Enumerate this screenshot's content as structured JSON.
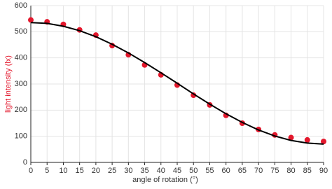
{
  "chart_data": {
    "type": "scatter",
    "x_label": "angle of rotation (°)",
    "y_label": "light intensity (lx)",
    "x": [
      0,
      5,
      10,
      15,
      20,
      25,
      30,
      35,
      40,
      45,
      50,
      55,
      60,
      65,
      70,
      75,
      80,
      85,
      90
    ],
    "series": [
      {
        "type": "scatter",
        "color": "#e3172c",
        "values": [
          545,
          538,
          528,
          507,
          487,
          447,
          412,
          373,
          335,
          296,
          257,
          220,
          180,
          150,
          126,
          105,
          95,
          86,
          80
        ]
      },
      {
        "type": "line",
        "color": "#000000",
        "values": [
          535,
          532,
          521,
          504,
          481,
          452,
          419,
          382,
          343,
          303,
          262,
          223,
          186,
          153,
          124,
          101,
          84,
          74,
          70
        ]
      }
    ],
    "xlim": [
      0,
      90
    ],
    "xticks": [
      0,
      5,
      10,
      15,
      20,
      25,
      30,
      35,
      40,
      45,
      50,
      55,
      60,
      65,
      70,
      75,
      80,
      85,
      90
    ],
    "ylim": [
      0,
      600
    ],
    "yticks": [
      0,
      100,
      200,
      300,
      400,
      500,
      600
    ],
    "grid": true,
    "y_label_color": "#e3172c"
  }
}
